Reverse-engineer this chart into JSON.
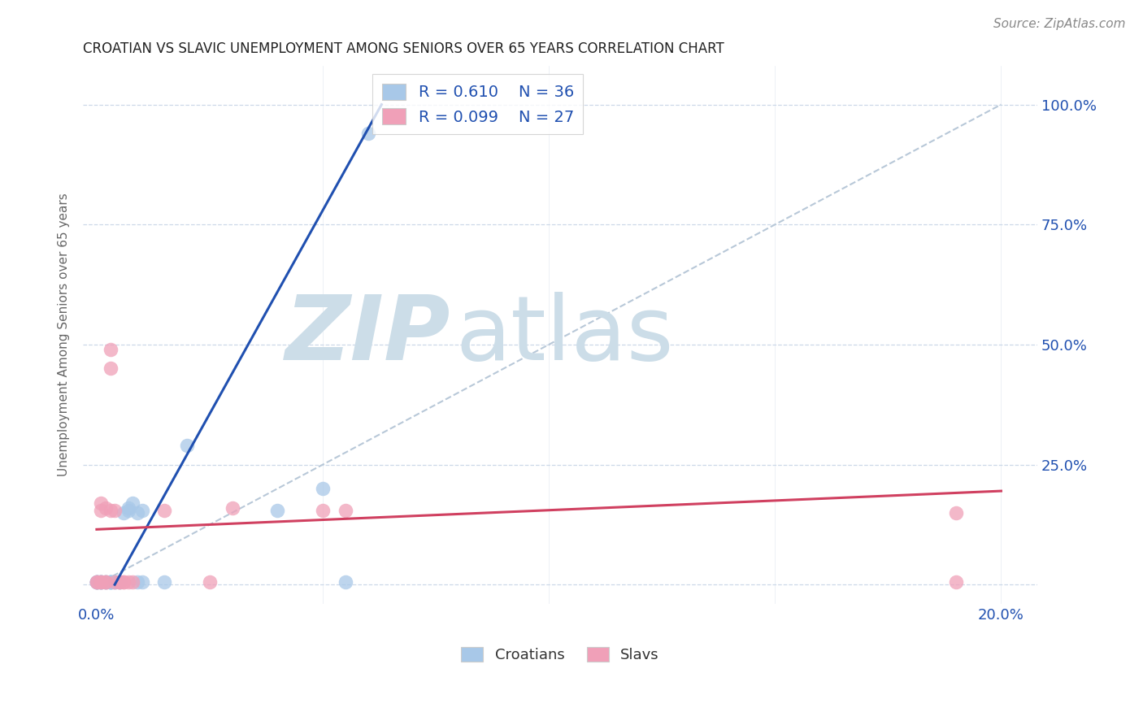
{
  "title": "CROATIAN VS SLAVIC UNEMPLOYMENT AMONG SENIORS OVER 65 YEARS CORRELATION CHART",
  "source": "Source: ZipAtlas.com",
  "ylabel": "Unemployment Among Seniors over 65 years",
  "xlim": [
    -0.003,
    0.208
  ],
  "ylim": [
    -0.04,
    1.08
  ],
  "croatian_color": "#a8c8e8",
  "slavic_color": "#f0a0b8",
  "croatian_line_color": "#2050b0",
  "slavic_line_color": "#d04060",
  "ref_line_color": "#b8c8d8",
  "grid_color": "#ccd8e8",
  "background_color": "#ffffff",
  "watermark_zip": "ZIP",
  "watermark_atlas": "atlas",
  "watermark_color": "#ccdde8",
  "legend_text_color": "#2050b0",
  "croatian_R": "0.610",
  "croatian_N": "36",
  "slavic_R": "0.099",
  "slavic_N": "27",
  "croatian_x": [
    0.0,
    0.0,
    0.0,
    0.0,
    0.0,
    0.001,
    0.001,
    0.001,
    0.001,
    0.001,
    0.002,
    0.002,
    0.002,
    0.003,
    0.003,
    0.003,
    0.003,
    0.003,
    0.004,
    0.004,
    0.005,
    0.005,
    0.006,
    0.007,
    0.007,
    0.008,
    0.009,
    0.009,
    0.01,
    0.01,
    0.015,
    0.02,
    0.04,
    0.05,
    0.055,
    0.06
  ],
  "croatian_y": [
    0.005,
    0.005,
    0.005,
    0.005,
    0.005,
    0.005,
    0.005,
    0.005,
    0.005,
    0.005,
    0.005,
    0.005,
    0.005,
    0.005,
    0.005,
    0.005,
    0.005,
    0.005,
    0.005,
    0.005,
    0.005,
    0.005,
    0.15,
    0.155,
    0.16,
    0.17,
    0.15,
    0.005,
    0.155,
    0.005,
    0.005,
    0.29,
    0.155,
    0.2,
    0.005,
    0.94
  ],
  "slavic_x": [
    0.0,
    0.0,
    0.001,
    0.001,
    0.001,
    0.001,
    0.002,
    0.002,
    0.002,
    0.003,
    0.003,
    0.003,
    0.004,
    0.004,
    0.005,
    0.005,
    0.006,
    0.006,
    0.007,
    0.008,
    0.015,
    0.025,
    0.03,
    0.05,
    0.055,
    0.19,
    0.19
  ],
  "slavic_y": [
    0.005,
    0.005,
    0.005,
    0.005,
    0.155,
    0.17,
    0.005,
    0.16,
    0.005,
    0.155,
    0.49,
    0.45,
    0.155,
    0.005,
    0.005,
    0.005,
    0.005,
    0.005,
    0.005,
    0.005,
    0.155,
    0.005,
    0.16,
    0.155,
    0.155,
    0.005,
    0.15
  ],
  "blue_line_x0": 0.004,
  "blue_line_y0": 0.0,
  "blue_line_x1": 0.063,
  "blue_line_y1": 1.0,
  "pink_line_x0": 0.0,
  "pink_line_y0": 0.115,
  "pink_line_x1": 0.2,
  "pink_line_y1": 0.195
}
